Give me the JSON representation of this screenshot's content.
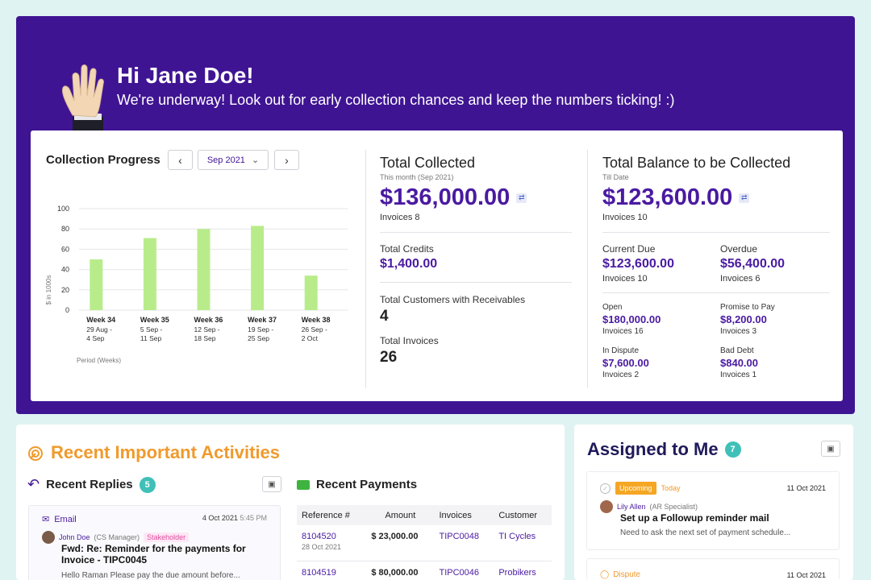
{
  "hero": {
    "greeting": "Hi Jane Doe!",
    "subtitle": "We're underway! Look out for early collection chances and keep the numbers ticking! :)",
    "bg_color": "#3f1493"
  },
  "collection_progress": {
    "title": "Collection Progress",
    "month": "Sep 2021",
    "prev_icon": "chevron-left-icon",
    "next_icon": "chevron-right-icon"
  },
  "chart_data": {
    "type": "bar",
    "categories": [
      "Week 34",
      "Week 35",
      "Week 36",
      "Week 37",
      "Week 38"
    ],
    "category_sublabels": [
      [
        "29 Aug -",
        "4 Sep"
      ],
      [
        "5 Sep -",
        "11 Sep"
      ],
      [
        "12 Sep -",
        "18 Sep"
      ],
      [
        "19 Sep -",
        "25 Sep"
      ],
      [
        "26 Sep -",
        "2 Oct"
      ]
    ],
    "values": [
      50,
      71,
      80,
      83,
      34
    ],
    "ylabel": "$ in 1000s",
    "xlabel": "Period (Weeks)",
    "yticks": [
      "100",
      "80",
      "60",
      "40",
      "20",
      "0"
    ],
    "ylim": [
      0,
      100
    ],
    "grid": true,
    "bar_color": "#b8ec8a"
  },
  "total_collected": {
    "title": "Total Collected",
    "period": "This month (Sep 2021)",
    "amount": "$136,000.00",
    "invoices_label": "Invoices",
    "invoices": "8",
    "credits_label": "Total Credits",
    "credits": "$1,400.00",
    "customers_label": "Total Customers with Receivables",
    "customers": "4",
    "total_invoices_label": "Total Invoices",
    "total_invoices": "26"
  },
  "balance": {
    "title": "Total Balance to be Collected",
    "period": "Till Date",
    "amount": "$123,600.00",
    "invoices_label": "Invoices",
    "invoices": "10",
    "current_due_label": "Current Due",
    "current_due": "$123,600.00",
    "current_due_invoices": "Invoices",
    "current_due_count": "10",
    "overdue_label": "Overdue",
    "overdue": "$56,400.00",
    "overdue_invoices": "Invoices",
    "overdue_count": "6",
    "open_label": "Open",
    "open": "$180,000.00",
    "open_invoices": "Invoices",
    "open_count": "16",
    "ptp_label": "Promise to Pay",
    "ptp": "$8,200.00",
    "ptp_invoices": "Invoices",
    "ptp_count": "3",
    "dispute_label": "In Dispute",
    "dispute": "$7,600.00",
    "dispute_invoices": "Invoices",
    "dispute_count": "2",
    "bad_debt_label": "Bad Debt",
    "bad_debt": "$840.00",
    "bad_debt_invoices": "Invoices",
    "bad_debt_count": "1"
  },
  "activities": {
    "title": "Recent Important Activities",
    "replies_title": "Recent Replies",
    "replies_count": "5",
    "reply": {
      "channel": "Email",
      "date": "4 Oct 2021",
      "time": "5:45 PM",
      "author": "John Doe",
      "role": "(CS Manager)",
      "tag": "Stakeholder",
      "subject": "Fwd: Re: Reminder for the payments for Invoice - TIPC0045",
      "preview": "Hello Raman Please pay the due amount before..."
    },
    "payments_title": "Recent Payments",
    "payments_headers": [
      "Reference #",
      "Amount",
      "Invoices",
      "Customer"
    ],
    "payments": [
      {
        "ref": "8104520",
        "date": "28 Oct 2021",
        "amount": "$ 23,000.00",
        "invoice": "TIPC0048",
        "customer": "TI Cycles"
      },
      {
        "ref": "8104519",
        "date": "",
        "amount": "$ 80,000.00",
        "invoice": "TIPC0046",
        "customer": "Probikers"
      }
    ]
  },
  "assigned": {
    "title": "Assigned to Me",
    "count": "7",
    "task": {
      "status": "Upcoming",
      "when": "Today",
      "date": "11 Oct 2021",
      "assignee": "Lily Allen",
      "assignee_role": "(AR Specialist)",
      "title": "Set up a Followup reminder mail",
      "desc": "Need to ask the next set of payment schedule..."
    },
    "task2": {
      "status": "Dispute",
      "date": "11 Oct 2021"
    }
  }
}
